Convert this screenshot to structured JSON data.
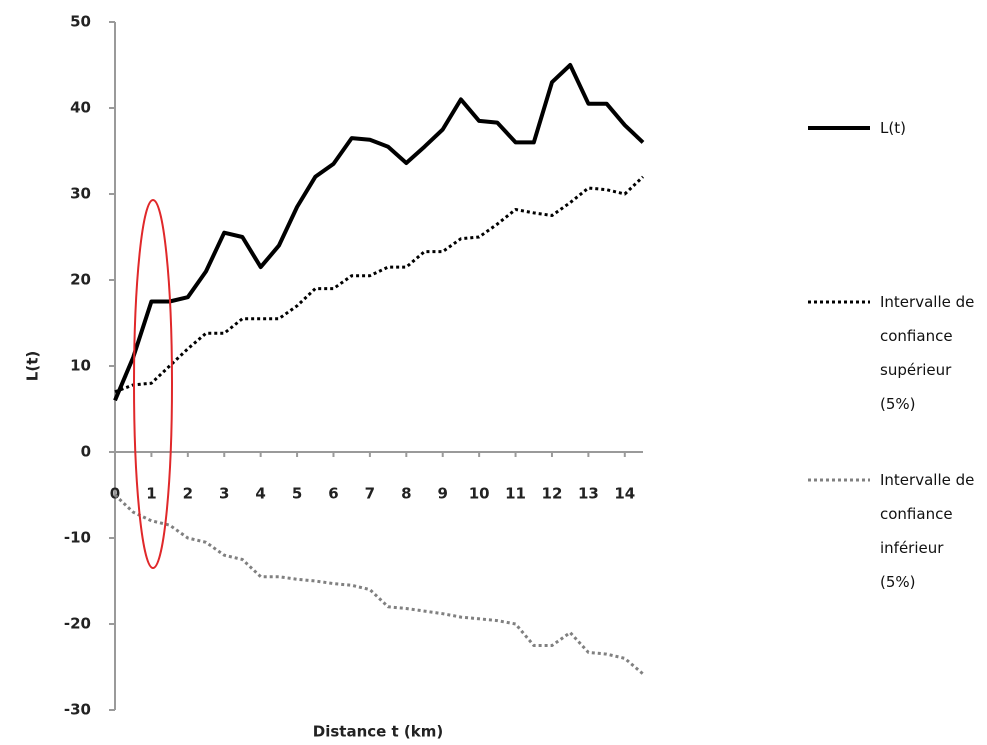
{
  "chart_data": {
    "type": "line",
    "x_label": "Distance t (km)",
    "y_label": "L(t)",
    "x": [
      0,
      0.5,
      1,
      1.5,
      2,
      2.5,
      3,
      3.5,
      4,
      4.5,
      5,
      5.5,
      6,
      6.5,
      7,
      7.5,
      8,
      8.5,
      9,
      9.5,
      10,
      10.5,
      11,
      11.5,
      12,
      12.5,
      13,
      13.5,
      14,
      14.5
    ],
    "series": [
      {
        "name": "L(t)",
        "color": "#000000",
        "style": "solid",
        "values": [
          6,
          11,
          17.5,
          17.5,
          18,
          21,
          25.5,
          25,
          21.5,
          24,
          28.5,
          32,
          33.5,
          36.5,
          36.3,
          35.5,
          33.6,
          35.5,
          37.5,
          41,
          38.5,
          38.3,
          36,
          36,
          43,
          45,
          40.5,
          40.5,
          38,
          36
        ]
      },
      {
        "name": "Intervalle de confiance supérieur (5%)",
        "color": "#000000",
        "style": "dotted",
        "values": [
          7,
          7.8,
          8,
          10,
          12,
          13.8,
          13.8,
          15.5,
          15.5,
          15.5,
          17,
          19,
          19,
          20.5,
          20.5,
          21.5,
          21.5,
          23.3,
          23.3,
          24.8,
          25,
          26.5,
          28.2,
          27.8,
          27.5,
          29,
          30.7,
          30.5,
          30,
          32
        ]
      },
      {
        "name": "Intervalle de confiance inférieur (5%)",
        "color": "#808080",
        "style": "dotted",
        "values": [
          -5,
          -7,
          -8,
          -8.5,
          -10,
          -10.5,
          -12,
          -12.5,
          -14.5,
          -14.5,
          -14.8,
          -15,
          -15.3,
          -15.5,
          -16,
          -18,
          -18.2,
          -18.5,
          -18.8,
          -19.2,
          -19.4,
          -19.6,
          -20,
          -22.5,
          -22.5,
          -21,
          -23.3,
          -23.5,
          -24,
          -25.8
        ]
      }
    ],
    "xlim": [
      0,
      14.5
    ],
    "xticks": [
      0,
      1,
      2,
      3,
      4,
      5,
      6,
      7,
      8,
      9,
      10,
      11,
      12,
      13,
      14
    ],
    "ylim": [
      -30,
      50
    ],
    "yticks": [
      -30,
      -20,
      -10,
      0,
      10,
      20,
      30,
      40,
      50
    ],
    "grid": false,
    "legend": "right"
  }
}
